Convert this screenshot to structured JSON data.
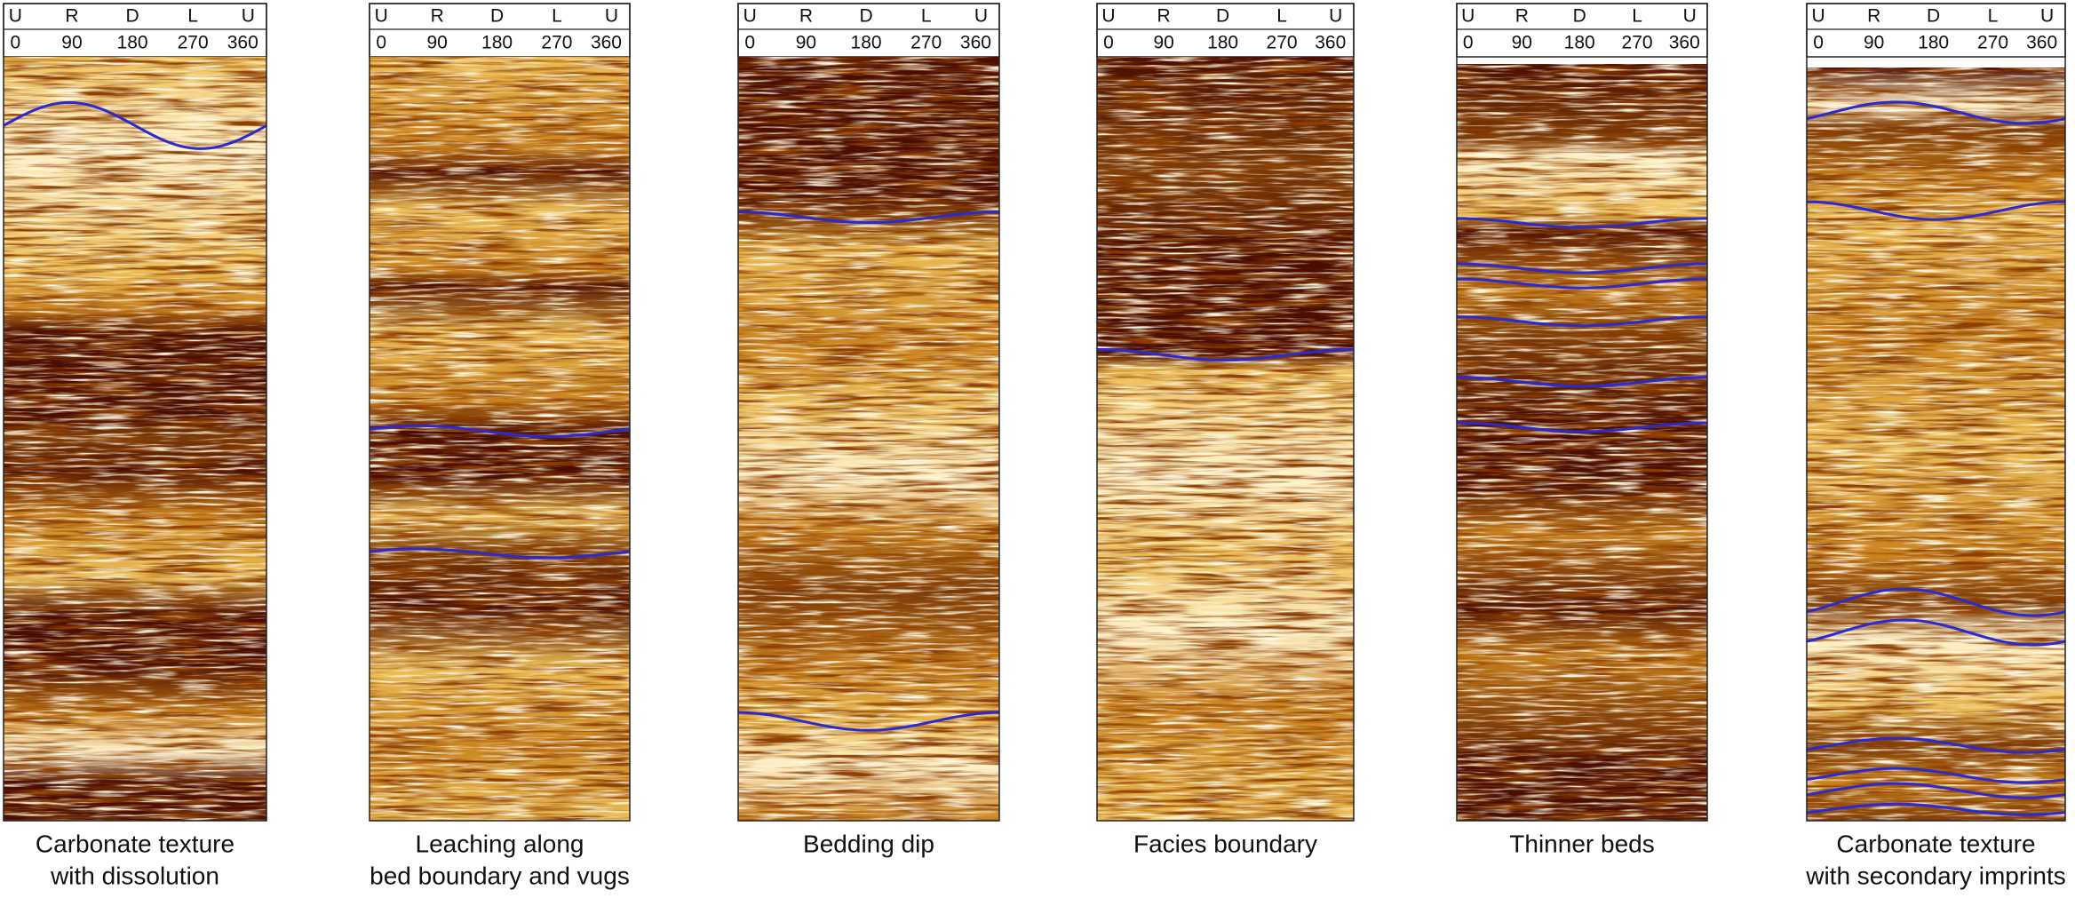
{
  "panels": [
    {
      "directions": [
        "U",
        "R",
        "D",
        "L",
        "U"
      ],
      "degrees": [
        0,
        90,
        180,
        270,
        360
      ],
      "caption": [
        "Carbonate texture",
        "with dissolution"
      ]
    },
    {
      "directions": [
        "U",
        "R",
        "D",
        "L",
        "U"
      ],
      "degrees": [
        0,
        90,
        180,
        270,
        360
      ],
      "caption": [
        "Leaching along",
        "bed boundary and vugs"
      ]
    },
    {
      "directions": [
        "U",
        "R",
        "D",
        "L",
        "U"
      ],
      "degrees": [
        0,
        90,
        180,
        270,
        360
      ],
      "caption": [
        "Bedding dip"
      ]
    },
    {
      "directions": [
        "U",
        "R",
        "D",
        "L",
        "U"
      ],
      "degrees": [
        0,
        90,
        180,
        270,
        360
      ],
      "caption": [
        "Facies boundary"
      ]
    },
    {
      "directions": [
        "U",
        "R",
        "D",
        "L",
        "U"
      ],
      "degrees": [
        0,
        90,
        180,
        270,
        360
      ],
      "caption": [
        "Thinner beds"
      ]
    },
    {
      "directions": [
        "U",
        "R",
        "D",
        "L",
        "U"
      ],
      "degrees": [
        0,
        90,
        180,
        270,
        360
      ],
      "caption": [
        "Carbonate texture",
        "with secondary imprints"
      ]
    }
  ]
}
